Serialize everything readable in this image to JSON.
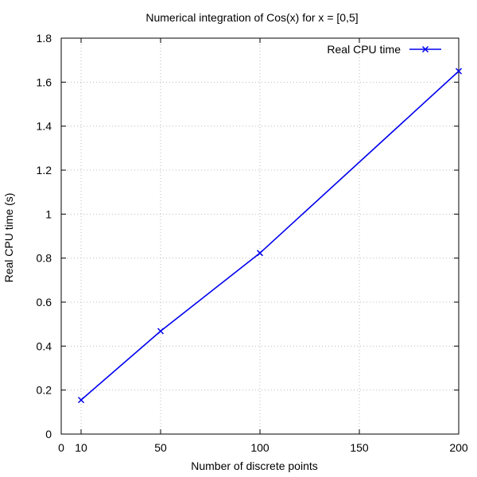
{
  "chart_data": {
    "type": "line",
    "title": "Numerical integration of Cos(x) for x = [0,5]",
    "xlabel": "Number of discrete points",
    "ylabel": "Real CPU time (s)",
    "xlim": [
      0,
      200
    ],
    "ylim": [
      0,
      1.8
    ],
    "xticks": [
      {
        "value": 0,
        "label": "0"
      },
      {
        "value": 10,
        "label": "10"
      },
      {
        "value": 50,
        "label": "50"
      },
      {
        "value": 100,
        "label": "100"
      },
      {
        "value": 150,
        "label": "150"
      },
      {
        "value": 200,
        "label": "200"
      }
    ],
    "yticks": [
      {
        "value": 0,
        "label": "0"
      },
      {
        "value": 0.2,
        "label": "0.2"
      },
      {
        "value": 0.4,
        "label": "0.4"
      },
      {
        "value": 0.6,
        "label": "0.6"
      },
      {
        "value": 0.8,
        "label": "0.8"
      },
      {
        "value": 1.0,
        "label": "1"
      },
      {
        "value": 1.2,
        "label": "1.2"
      },
      {
        "value": 1.4,
        "label": "1.4"
      },
      {
        "value": 1.6,
        "label": "1.6"
      },
      {
        "value": 1.8,
        "label": "1.8"
      }
    ],
    "grid": true,
    "legend_position": "top-right",
    "series": [
      {
        "name": "Real CPU time",
        "color": "#0000ee",
        "marker": "x",
        "x": [
          10,
          50,
          100,
          200
        ],
        "y": [
          0.155,
          0.468,
          0.823,
          1.65
        ]
      }
    ]
  }
}
